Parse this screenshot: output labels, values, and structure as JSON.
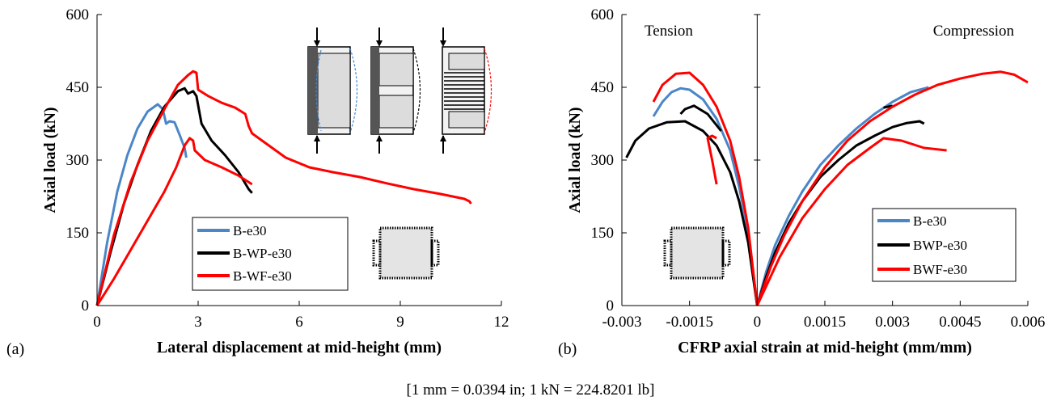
{
  "note": "[1 mm = 0.0394 in; 1 kN = 224.8201 lb]",
  "chart_data": [
    {
      "type": "line",
      "panel_label": "(a)",
      "xlabel": "Lateral displacement at mid-height (mm)",
      "ylabel": "Axial load (kN)",
      "xlim": [
        0,
        12
      ],
      "ylim": [
        0,
        600
      ],
      "xticks": [
        0,
        3,
        6,
        9,
        12
      ],
      "yticks": [
        0,
        150,
        300,
        450,
        600
      ],
      "grid": false,
      "legend_position": "bottom-center",
      "colors": {
        "B-e30": "#4a86c8",
        "B-WP-e30": "#000000",
        "B-WF-e30": "#ff0000"
      },
      "series": [
        {
          "name": "B-e30",
          "color": "#4a86c8",
          "x": [
            0,
            0.3,
            0.6,
            0.9,
            1.2,
            1.5,
            1.8,
            1.95,
            2.05,
            2.15,
            2.3,
            2.45,
            2.6,
            2.65
          ],
          "y": [
            0,
            130,
            235,
            310,
            365,
            400,
            415,
            405,
            375,
            380,
            378,
            352,
            325,
            305
          ]
        },
        {
          "name": "B-WP-e30",
          "color": "#000000",
          "x": [
            0,
            0.4,
            0.8,
            1.2,
            1.6,
            2.0,
            2.4,
            2.6,
            2.7,
            2.85,
            2.95,
            3.1,
            3.4,
            3.8,
            4.2,
            4.5,
            4.6
          ],
          "y": [
            0,
            110,
            210,
            290,
            360,
            410,
            442,
            448,
            437,
            442,
            432,
            375,
            340,
            310,
            275,
            240,
            232
          ]
        },
        {
          "name": "B-WF-e30",
          "color": "#ff0000",
          "x": [
            0,
            0.5,
            1.0,
            1.5,
            2.0,
            2.4,
            2.7,
            2.85,
            2.95,
            3.0,
            3.3,
            3.7,
            4.1,
            4.4,
            4.5,
            4.6,
            5.0,
            5.6,
            6.3,
            7.0,
            7.8,
            8.6,
            9.4,
            10.2,
            10.9,
            11.05,
            11.1
          ],
          "y": [
            0,
            145,
            255,
            340,
            405,
            455,
            475,
            483,
            480,
            445,
            432,
            418,
            408,
            395,
            370,
            355,
            335,
            305,
            285,
            275,
            265,
            252,
            240,
            230,
            220,
            215,
            210
          ]
        },
        {
          "name": "",
          "color": "#ff0000",
          "x": [
            0,
            0.5,
            1.0,
            1.5,
            2.0,
            2.35,
            2.6,
            2.75,
            2.85,
            2.9,
            3.2,
            3.7,
            4.2,
            4.6
          ],
          "y": [
            0,
            55,
            115,
            175,
            235,
            285,
            330,
            345,
            340,
            320,
            300,
            285,
            268,
            250
          ]
        }
      ]
    },
    {
      "type": "line",
      "panel_label": "(b)",
      "xlabel": "CFRP axial strain at mid-height (mm/mm)",
      "ylabel": "Axial load (kN)",
      "xlim": [
        -0.003,
        0.006
      ],
      "ylim": [
        0,
        600
      ],
      "xtick_labels": [
        "-0.003",
        "-0.0015",
        "0",
        "0.0015",
        "0.003",
        "0.0045",
        "0.006"
      ],
      "yticks": [
        0,
        150,
        300,
        450,
        600
      ],
      "grid": false,
      "annotations": [
        "Tension",
        "Compression"
      ],
      "legend_position": "bottom-right",
      "colors": {
        "B-e30": "#4a86c8",
        "BWP-e30": "#000000",
        "BWF-e30": "#ff0000"
      },
      "series": [
        {
          "name": "B-e30",
          "color": "#4a86c8",
          "x": [
            0.0,
            0.0002,
            0.0004,
            0.0007,
            0.001,
            0.0014,
            0.0018,
            0.0022,
            0.0026,
            0.003,
            0.0034,
            0.0038
          ],
          "y": [
            0,
            70,
            125,
            185,
            235,
            290,
            330,
            365,
            395,
            420,
            440,
            450
          ]
        },
        {
          "name": "",
          "color": "#4a86c8",
          "x": [
            0.0,
            -0.0002,
            -0.0004,
            -0.0006,
            -0.0009,
            -0.0012,
            -0.0015,
            -0.0017,
            -0.0019,
            -0.0021,
            -0.0023
          ],
          "y": [
            0,
            150,
            245,
            320,
            385,
            425,
            445,
            448,
            440,
            420,
            390
          ]
        },
        {
          "name": "BWP-e30",
          "color": "#000000",
          "x": [
            0.0,
            0.0002,
            0.0004,
            0.0007,
            0.001,
            0.0014,
            0.0018,
            0.0022,
            0.0026,
            0.003,
            0.0033,
            0.0036,
            0.0037
          ],
          "y": [
            0,
            60,
            110,
            170,
            215,
            265,
            300,
            330,
            350,
            368,
            376,
            380,
            375
          ]
        },
        {
          "name": "",
          "color": "#000000",
          "x": [
            0.0,
            -0.0002,
            -0.0004,
            -0.0006,
            -0.0009,
            -0.0012,
            -0.0016,
            -0.002,
            -0.0024,
            -0.0027,
            -0.0029
          ],
          "y": [
            0,
            130,
            215,
            275,
            330,
            360,
            380,
            378,
            365,
            340,
            305
          ]
        },
        {
          "name": "",
          "color": "#000000",
          "x": [
            0.0028,
            0.003
          ],
          "y": [
            408,
            412
          ]
        },
        {
          "name": "",
          "color": "#000000",
          "x": [
            -0.0008,
            -0.0011,
            -0.0014,
            -0.0016,
            -0.0017
          ],
          "y": [
            360,
            395,
            412,
            405,
            395
          ]
        },
        {
          "name": "BWF-e30",
          "color": "#ff0000",
          "x": [
            0.0,
            0.0003,
            0.0006,
            0.001,
            0.0015,
            0.002,
            0.0025,
            0.003,
            0.0035,
            0.004,
            0.0045,
            0.005,
            0.0054,
            0.0057,
            0.006
          ],
          "y": [
            0,
            80,
            145,
            215,
            285,
            340,
            380,
            410,
            435,
            455,
            468,
            478,
            482,
            476,
            460
          ]
        },
        {
          "name": "",
          "color": "#ff0000",
          "x": [
            0.0,
            -0.0002,
            -0.0004,
            -0.0006,
            -0.0009,
            -0.0012,
            -0.0015,
            -0.0018,
            -0.0021,
            -0.0023
          ],
          "y": [
            0,
            160,
            265,
            340,
            410,
            455,
            480,
            478,
            455,
            420
          ]
        },
        {
          "name": "",
          "color": "#ff0000",
          "x": [
            0.0,
            0.0005,
            0.001,
            0.0015,
            0.002,
            0.0025,
            0.0028,
            0.0032,
            0.0037,
            0.0042
          ],
          "y": [
            0,
            100,
            180,
            240,
            290,
            325,
            345,
            340,
            325,
            320
          ]
        },
        {
          "name": "",
          "color": "#ff0000",
          "x": [
            -0.0009,
            -0.001,
            -0.0011,
            -0.001,
            -0.0009
          ],
          "y": [
            250,
            300,
            345,
            350,
            345
          ]
        }
      ]
    }
  ]
}
